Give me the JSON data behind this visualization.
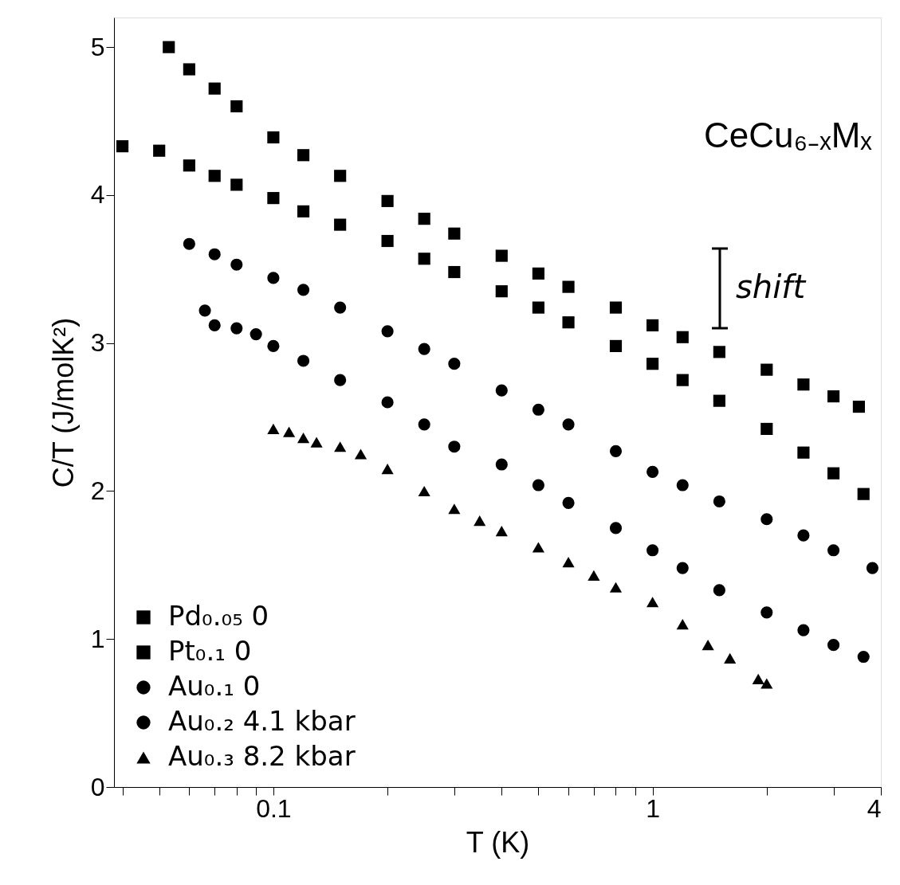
{
  "chart_data": {
    "type": "scatter",
    "xlabel": "T (K)",
    "ylabel": "C/T (J/molK²)",
    "log": "x",
    "xlim": [
      0.038,
      4
    ],
    "ylim": [
      0,
      5.2
    ],
    "xticks": [
      {
        "value": 0.04,
        "label": null
      },
      {
        "value": 0.05,
        "label": null
      },
      {
        "value": 0.06,
        "label": null
      },
      {
        "value": 0.07,
        "label": null
      },
      {
        "value": 0.08,
        "label": null
      },
      {
        "value": 0.09,
        "label": null
      },
      0.1,
      {
        "value": 0.2,
        "label": null
      },
      {
        "value": 0.3,
        "label": null
      },
      {
        "value": 0.4,
        "label": null
      },
      {
        "value": 0.5,
        "label": null
      },
      {
        "value": 0.6,
        "label": null
      },
      {
        "value": 0.7,
        "label": null
      },
      {
        "value": 0.8,
        "label": null
      },
      {
        "value": 0.9,
        "label": null
      },
      1,
      {
        "value": 2,
        "label": null
      },
      {
        "value": 3,
        "label": null
      },
      4
    ],
    "yticks": [
      0,
      1,
      2,
      3,
      4,
      5
    ],
    "grid": false,
    "legend": "bottom left",
    "annotations": [
      "CeCu₆₋ₓMₓ",
      "shift"
    ],
    "series": [
      {
        "name": "Pd₀.₀₅ 0",
        "color": "#000000",
        "marker": "square",
        "x": [
          0.053,
          0.06,
          0.07,
          0.08,
          0.1,
          0.12,
          0.15,
          0.2,
          0.25,
          0.3,
          0.4,
          0.5,
          0.6,
          0.8,
          1,
          1.2,
          1.5,
          2,
          2.5,
          3,
          3.5
        ],
        "values": [
          5.0,
          4.85,
          4.72,
          4.6,
          4.39,
          4.27,
          4.13,
          3.96,
          3.84,
          3.74,
          3.59,
          3.47,
          3.38,
          3.24,
          3.12,
          3.04,
          2.94,
          2.82,
          2.72,
          2.64,
          2.57
        ]
      },
      {
        "name": "Pt₀.₁ 0",
        "color": "#000000",
        "marker": "square",
        "x": [
          0.04,
          0.05,
          0.06,
          0.07,
          0.08,
          0.1,
          0.12,
          0.15,
          0.2,
          0.25,
          0.3,
          0.4,
          0.5,
          0.6,
          0.8,
          1,
          1.2,
          1.5,
          2,
          2.5,
          3,
          3.6
        ],
        "values": [
          4.33,
          4.3,
          4.2,
          4.13,
          4.07,
          3.98,
          3.89,
          3.8,
          3.69,
          3.57,
          3.48,
          3.35,
          3.24,
          3.14,
          2.98,
          2.86,
          2.75,
          2.61,
          2.42,
          2.26,
          2.12,
          1.98
        ]
      },
      {
        "name": "Au₀.₁ 0",
        "color": "#000000",
        "marker": "circle",
        "x": [
          0.06,
          0.07,
          0.08,
          0.1,
          0.12,
          0.15,
          0.2,
          0.25,
          0.3,
          0.4,
          0.5,
          0.6,
          0.8,
          1,
          1.2,
          1.5,
          2,
          2.5,
          3,
          3.8
        ],
        "values": [
          3.67,
          3.6,
          3.53,
          3.44,
          3.36,
          3.24,
          3.08,
          2.96,
          2.86,
          2.68,
          2.55,
          2.45,
          2.27,
          2.13,
          2.04,
          1.93,
          1.81,
          1.7,
          1.6,
          1.48
        ]
      },
      {
        "name": "Au₀.₂ 4.1 kbar",
        "color": "#000000",
        "marker": "circle",
        "x": [
          0.066,
          0.07,
          0.08,
          0.09,
          0.1,
          0.12,
          0.15,
          0.2,
          0.25,
          0.3,
          0.4,
          0.5,
          0.6,
          0.8,
          1,
          1.2,
          1.5,
          2,
          2.5,
          3,
          3.6
        ],
        "values": [
          3.22,
          3.12,
          3.1,
          3.06,
          2.98,
          2.88,
          2.75,
          2.6,
          2.45,
          2.3,
          2.18,
          2.04,
          1.92,
          1.75,
          1.6,
          1.48,
          1.33,
          1.18,
          1.06,
          0.96,
          0.88
        ]
      },
      {
        "name": "Au₀.₃ 8.2 kbar",
        "color": "#000000",
        "marker": "triangle",
        "x": [
          0.1,
          0.11,
          0.12,
          0.13,
          0.15,
          0.17,
          0.2,
          0.25,
          0.3,
          0.35,
          0.4,
          0.5,
          0.6,
          0.7,
          0.8,
          1,
          1.2,
          1.4,
          1.6,
          1.9,
          2
        ],
        "values": [
          2.42,
          2.4,
          2.36,
          2.33,
          2.3,
          2.25,
          2.15,
          2.0,
          1.88,
          1.8,
          1.73,
          1.62,
          1.52,
          1.43,
          1.35,
          1.25,
          1.1,
          0.96,
          0.87,
          0.73,
          0.7
        ]
      }
    ]
  }
}
